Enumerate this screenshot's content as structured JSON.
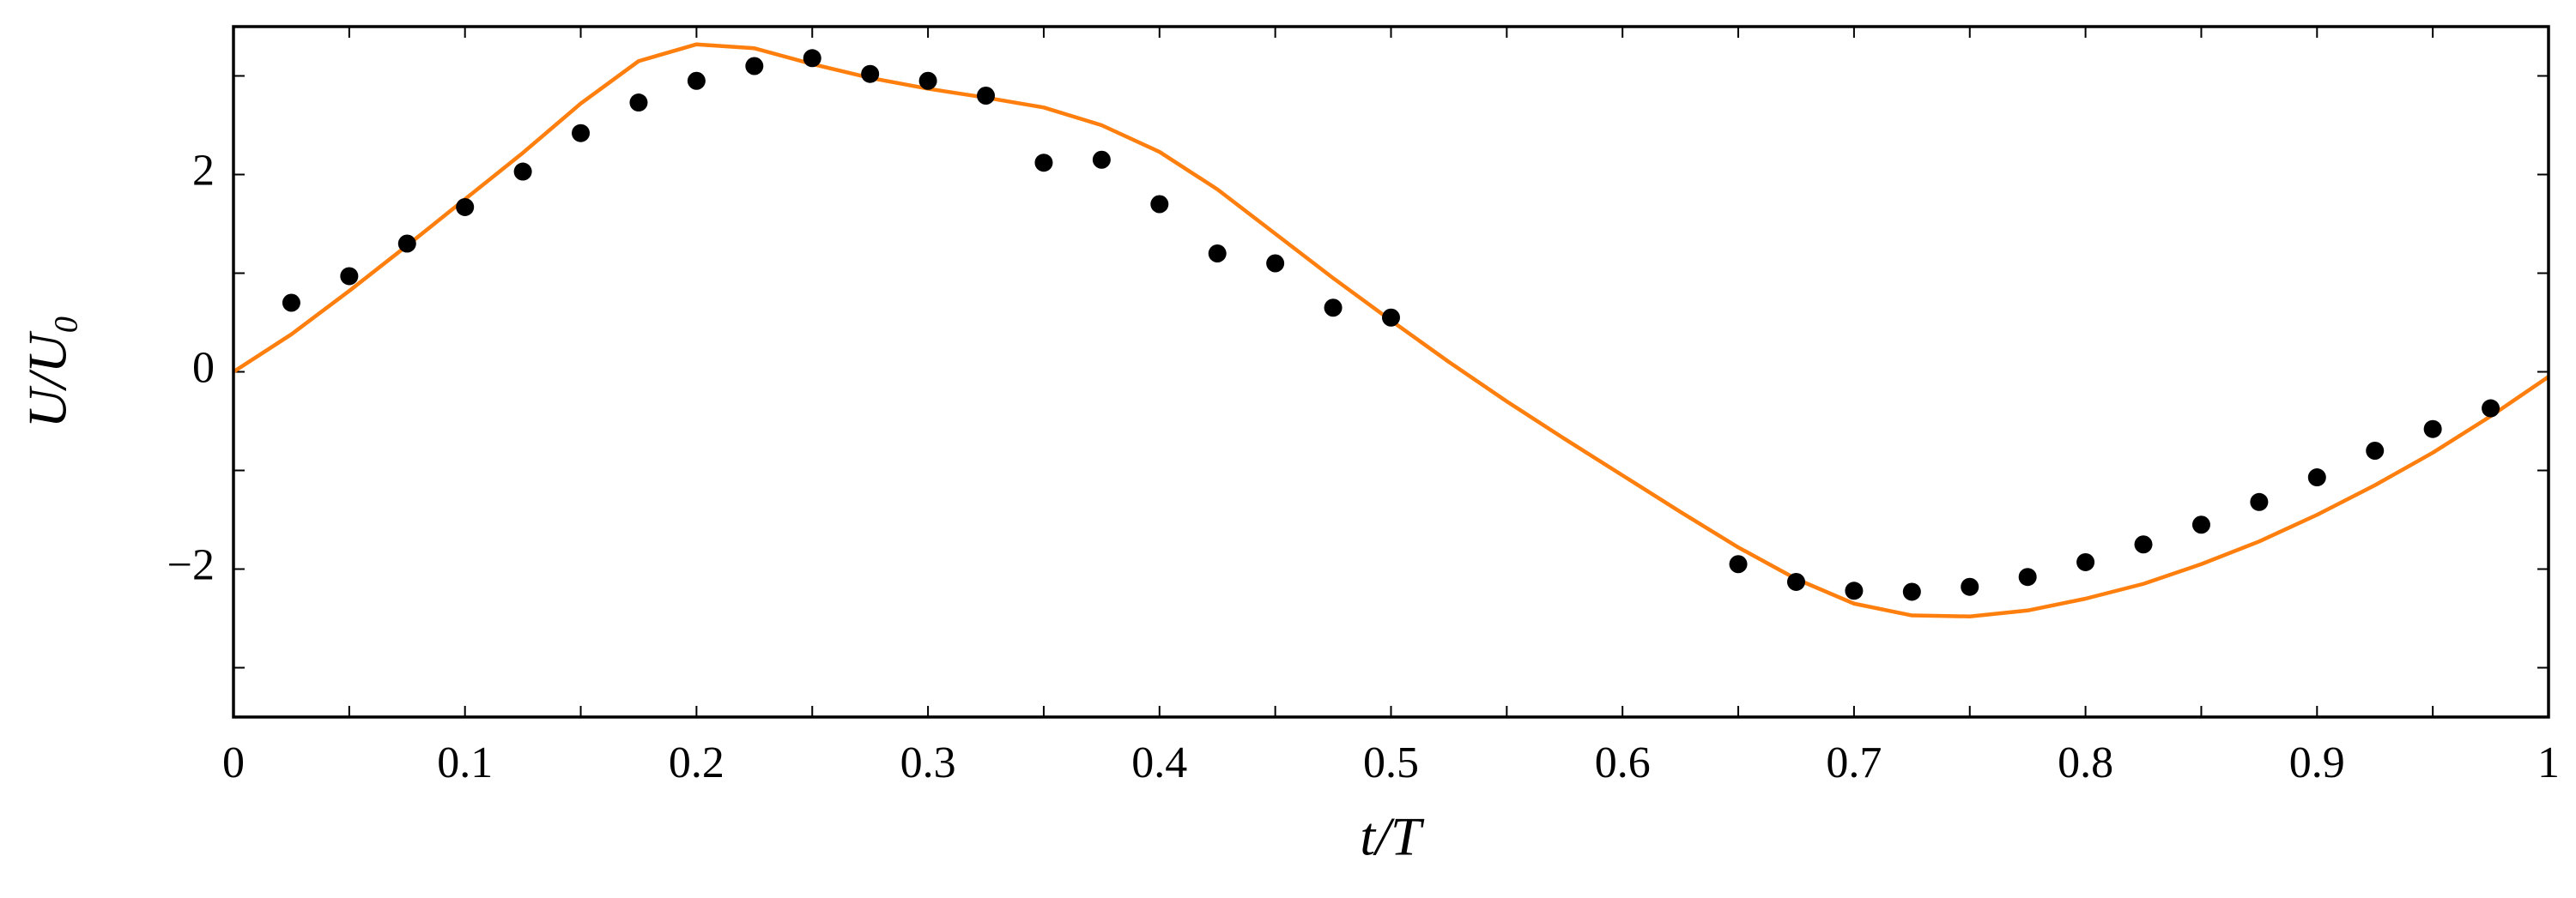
{
  "chart_data": {
    "type": "line",
    "x_label": "t/T",
    "y_label": "U/U₀",
    "xlim": [
      0,
      1
    ],
    "ylim": [
      -3.5,
      3.5
    ],
    "xticks": [
      0,
      0.1,
      0.2,
      0.3,
      0.4,
      0.5,
      0.6,
      0.7,
      0.8,
      0.9,
      1
    ],
    "xminorticks": [
      0.05,
      0.15,
      0.25,
      0.35,
      0.45,
      0.55,
      0.65,
      0.75,
      0.85,
      0.95
    ],
    "yticks": [
      {
        "value": -2,
        "label": "−2"
      },
      0,
      2
    ],
    "yminorticks": [
      -3,
      -1,
      1,
      3
    ],
    "grid": false,
    "series": [
      {
        "type": "line",
        "color": "#ff7f0e",
        "x": [
          0,
          0.025,
          0.05,
          0.075,
          0.1,
          0.125,
          0.15,
          0.175,
          0.2,
          0.225,
          0.25,
          0.275,
          0.3,
          0.325,
          0.35,
          0.375,
          0.4,
          0.425,
          0.45,
          0.475,
          0.5,
          0.525,
          0.55,
          0.575,
          0.6,
          0.625,
          0.65,
          0.675,
          0.7,
          0.725,
          0.75,
          0.775,
          0.8,
          0.825,
          0.85,
          0.875,
          0.9,
          0.925,
          0.95,
          0.975,
          1
        ],
        "values": [
          0,
          0.38,
          0.82,
          1.28,
          1.75,
          2.22,
          2.72,
          3.15,
          3.32,
          3.28,
          3.12,
          2.98,
          2.87,
          2.78,
          2.68,
          2.5,
          2.23,
          1.85,
          1.4,
          0.95,
          0.52,
          0.1,
          -0.3,
          -0.68,
          -1.05,
          -1.42,
          -1.78,
          -2.1,
          -2.35,
          -2.47,
          -2.48,
          -2.42,
          -2.3,
          -2.15,
          -1.95,
          -1.72,
          -1.45,
          -1.15,
          -0.82,
          -0.45,
          -0.05
        ]
      },
      {
        "type": "scatter",
        "color": "#000000",
        "x": [
          0.025,
          0.05,
          0.075,
          0.1,
          0.125,
          0.15,
          0.175,
          0.2,
          0.225,
          0.25,
          0.275,
          0.3,
          0.325,
          0.35,
          0.375,
          0.4,
          0.425,
          0.45,
          0.475,
          0.5,
          0.65,
          0.675,
          0.7,
          0.725,
          0.75,
          0.775,
          0.8,
          0.825,
          0.85,
          0.875,
          0.9,
          0.925,
          0.95,
          0.975
        ],
        "values": [
          0.7,
          0.97,
          1.3,
          1.67,
          2.03,
          2.42,
          2.73,
          2.95,
          3.1,
          3.18,
          3.02,
          2.95,
          2.8,
          2.12,
          2.15,
          1.7,
          1.2,
          1.1,
          0.65,
          0.55,
          -1.95,
          -2.13,
          -2.22,
          -2.23,
          -2.18,
          -2.08,
          -1.93,
          -1.75,
          -1.55,
          -1.32,
          -1.07,
          -0.8,
          -0.58,
          -0.37
        ]
      }
    ]
  }
}
